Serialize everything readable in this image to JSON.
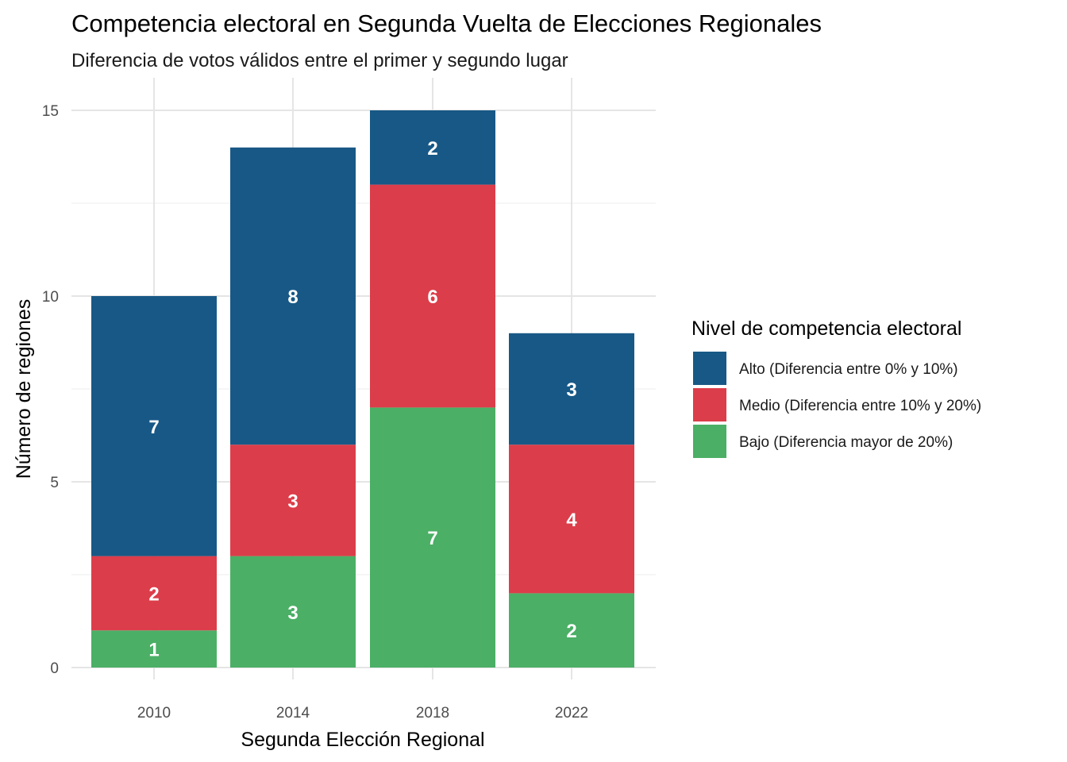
{
  "chart_data": {
    "type": "bar",
    "stacked": true,
    "title": "Competencia electoral en Segunda Vuelta de Elecciones Regionales",
    "subtitle": "Diferencia de votos válidos entre el primer y segundo lugar",
    "xlabel": "Segunda Elección Regional",
    "ylabel": "Número de regiones",
    "categories": [
      "2010",
      "2014",
      "2018",
      "2022"
    ],
    "ylim": [
      0,
      15
    ],
    "yticks": [
      0,
      5,
      10,
      15
    ],
    "grid": true,
    "legend": {
      "title": "Nivel de competencia electoral",
      "position": "right"
    },
    "series": [
      {
        "name": "Bajo (Diferencia mayor de 20%)",
        "color": "#4BAF66",
        "values": [
          1,
          3,
          7,
          2
        ]
      },
      {
        "name": "Medio (Diferencia entre 10% y 20%)",
        "color": "#DC3D4A",
        "values": [
          2,
          3,
          6,
          4
        ]
      },
      {
        "name": "Alto (Diferencia entre 0% y 10%)",
        "color": "#185886",
        "values": [
          7,
          8,
          2,
          3
        ]
      }
    ],
    "legend_order": [
      "Alto (Diferencia entre 0% y 10%)",
      "Medio (Diferencia entre 10% y 20%)",
      "Bajo (Diferencia mayor de 20%)"
    ]
  }
}
